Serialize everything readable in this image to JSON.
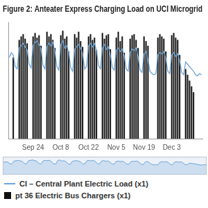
{
  "chart_data": {
    "type": "bar",
    "title": "Figure 2: Anteater Express Charging Load on UCI Microgrid",
    "categories": [
      null,
      null,
      null,
      null,
      null,
      null,
      null,
      null,
      null,
      null,
      null,
      null,
      "Sep 24",
      null,
      null,
      null,
      null,
      null,
      null,
      null,
      null,
      null,
      null,
      null,
      null,
      null,
      "Oct 8",
      null,
      null,
      null,
      null,
      null,
      null,
      null,
      null,
      null,
      null,
      null,
      null,
      null,
      "Oct 22",
      null,
      null,
      null,
      null,
      null,
      null,
      null,
      null,
      null,
      null,
      null,
      null,
      null,
      "Nov 5",
      null,
      null,
      null,
      null,
      null,
      null,
      null,
      null,
      null,
      null,
      null,
      null,
      null,
      "Nov 19",
      null,
      null,
      null,
      null,
      null,
      null,
      null,
      null,
      null,
      null,
      null,
      null,
      null,
      "Dec 3",
      null,
      null,
      null,
      null,
      null,
      null,
      null,
      null,
      null,
      null,
      null,
      null,
      null,
      null,
      null
    ],
    "series": [
      {
        "name": "CI – Central Plant Electric Load (x1)",
        "type": "line",
        "color": "#6ba4d8",
        "values": [
          70,
          74,
          72,
          62,
          60,
          78,
          80,
          82,
          79,
          76,
          64,
          61,
          80,
          83,
          84,
          81,
          77,
          63,
          60,
          79,
          82,
          80,
          83,
          75,
          62,
          59,
          81,
          84,
          78,
          80,
          74,
          61,
          58,
          77,
          79,
          81,
          78,
          73,
          60,
          62,
          80,
          82,
          79,
          82,
          76,
          63,
          60,
          78,
          81,
          77,
          79,
          72,
          61,
          59,
          76,
          78,
          75,
          77,
          71,
          60,
          58,
          74,
          77,
          76,
          78,
          70,
          59,
          57,
          73,
          75,
          68,
          58,
          56,
          55,
          56,
          72,
          74,
          73,
          75,
          69,
          58,
          56,
          72,
          74,
          71,
          73,
          67,
          57,
          55,
          66,
          64,
          62,
          60,
          58,
          55,
          54,
          56,
          55
        ]
      },
      {
        "name": "pt 36 Electric Bus Chargers (x1)",
        "type": "bar",
        "color": "#111111",
        "values": [
          0,
          0,
          70,
          0,
          0,
          85,
          88,
          90,
          86,
          82,
          0,
          0,
          88,
          91,
          87,
          89,
          80,
          0,
          0,
          92,
          88,
          90,
          85,
          78,
          0,
          0,
          89,
          93,
          86,
          88,
          75,
          0,
          0,
          90,
          87,
          92,
          84,
          79,
          0,
          0,
          88,
          90,
          85,
          87,
          76,
          0,
          0,
          91,
          86,
          89,
          90,
          77,
          0,
          0,
          87,
          92,
          84,
          88,
          74,
          0,
          0,
          86,
          89,
          90,
          85,
          78,
          0,
          0,
          88,
          84,
          80,
          0,
          0,
          0,
          0,
          87,
          90,
          88,
          86,
          75,
          0,
          0,
          89,
          91,
          87,
          85,
          72,
          0,
          0,
          60,
          55,
          50,
          45,
          40,
          0,
          0,
          0,
          0
        ]
      }
    ],
    "ylim": [
      0,
      100
    ],
    "yticks": [],
    "grid": false,
    "tick_labels": "x",
    "legend": "bottom"
  }
}
